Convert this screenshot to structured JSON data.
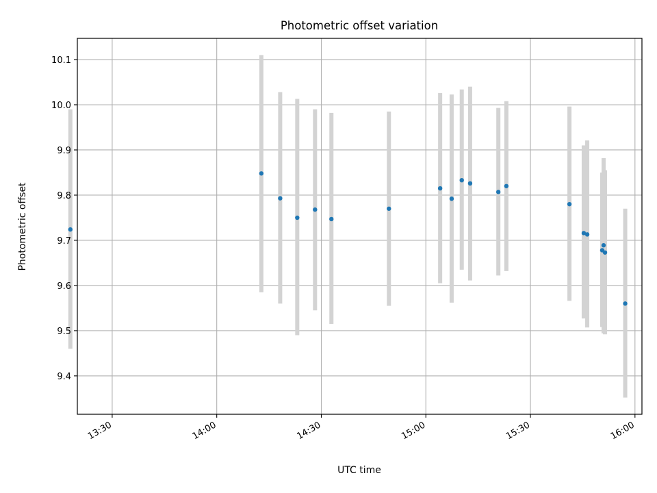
{
  "chart_data": {
    "type": "scatter",
    "title": "Photometric offset variation",
    "xlabel": "UTC time",
    "ylabel": "Photometric offset",
    "x_axis_type": "time",
    "xlim": [
      "13:20",
      "16:02"
    ],
    "ylim": [
      9.315,
      10.147
    ],
    "grid": true,
    "colors": {
      "point": "#1f77b4",
      "errorbar": "#d3d3d3",
      "grid": "#b0b0b0"
    },
    "x_ticks": [
      "13:30",
      "14:00",
      "14:30",
      "15:00",
      "15:30",
      "16:00"
    ],
    "y_ticks": [
      "9.4",
      "9.5",
      "9.6",
      "9.7",
      "9.8",
      "9.9",
      "10.0",
      "10.1"
    ],
    "points": [
      {
        "x": "13:18:00",
        "y": 9.724,
        "lo": 9.46,
        "hi": 9.99
      },
      {
        "x": "14:12:48",
        "y": 9.848,
        "lo": 9.585,
        "hi": 10.11
      },
      {
        "x": "14:18:12",
        "y": 9.793,
        "lo": 9.56,
        "hi": 10.028
      },
      {
        "x": "14:23:06",
        "y": 9.75,
        "lo": 9.49,
        "hi": 10.013
      },
      {
        "x": "14:28:12",
        "y": 9.768,
        "lo": 9.545,
        "hi": 9.99
      },
      {
        "x": "14:32:54",
        "y": 9.747,
        "lo": 9.515,
        "hi": 9.982
      },
      {
        "x": "14:49:24",
        "y": 9.77,
        "lo": 9.555,
        "hi": 9.985
      },
      {
        "x": "15:04:06",
        "y": 9.815,
        "lo": 9.605,
        "hi": 10.026
      },
      {
        "x": "15:07:24",
        "y": 9.792,
        "lo": 9.562,
        "hi": 10.023
      },
      {
        "x": "15:10:18",
        "y": 9.833,
        "lo": 9.635,
        "hi": 10.034
      },
      {
        "x": "15:12:42",
        "y": 9.826,
        "lo": 9.611,
        "hi": 10.04
      },
      {
        "x": "15:20:48",
        "y": 9.807,
        "lo": 9.622,
        "hi": 9.993
      },
      {
        "x": "15:23:06",
        "y": 9.82,
        "lo": 9.632,
        "hi": 10.008
      },
      {
        "x": "15:41:12",
        "y": 9.78,
        "lo": 9.566,
        "hi": 9.996
      },
      {
        "x": "15:45:18",
        "y": 9.716,
        "lo": 9.527,
        "hi": 9.91
      },
      {
        "x": "15:46:18",
        "y": 9.713,
        "lo": 9.507,
        "hi": 9.921
      },
      {
        "x": "15:50:36",
        "y": 9.678,
        "lo": 9.508,
        "hi": 9.85
      },
      {
        "x": "15:51:00",
        "y": 9.689,
        "lo": 9.494,
        "hi": 9.882
      },
      {
        "x": "15:51:24",
        "y": 9.673,
        "lo": 9.492,
        "hi": 9.855
      },
      {
        "x": "15:57:12",
        "y": 9.56,
        "lo": 9.352,
        "hi": 9.77
      }
    ]
  }
}
